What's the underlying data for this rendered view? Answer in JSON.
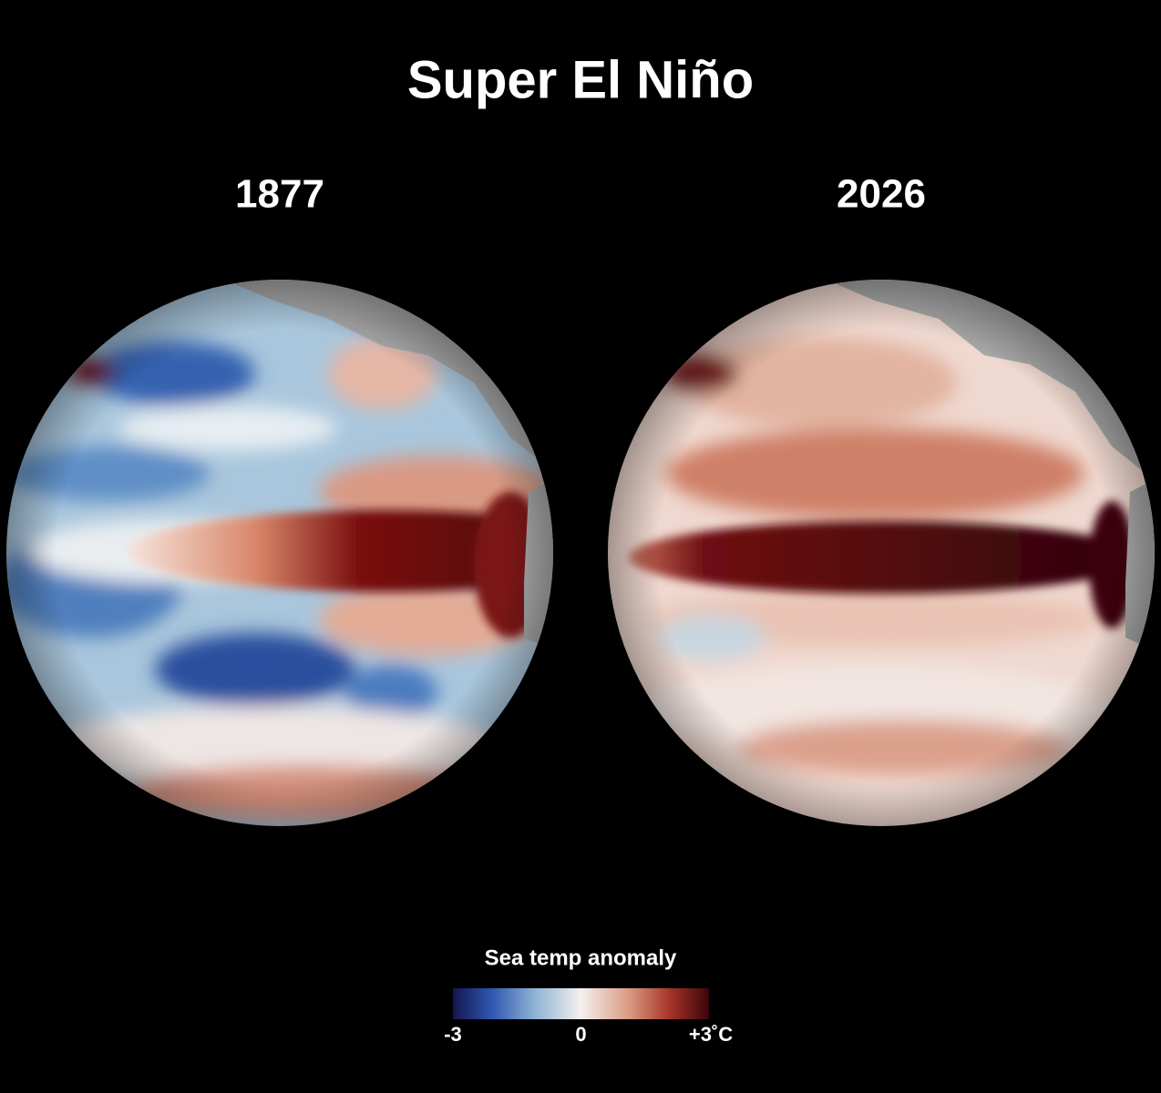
{
  "header": {
    "title": "Super El Niño"
  },
  "globes": [
    {
      "label": "1877"
    },
    {
      "label": "2026"
    }
  ],
  "legend": {
    "title": "Sea temp anomaly",
    "range": [
      -3,
      3
    ],
    "ticks": [
      -3,
      0,
      {
        "value": 3,
        "label": "+3˚C"
      }
    ]
  }
}
